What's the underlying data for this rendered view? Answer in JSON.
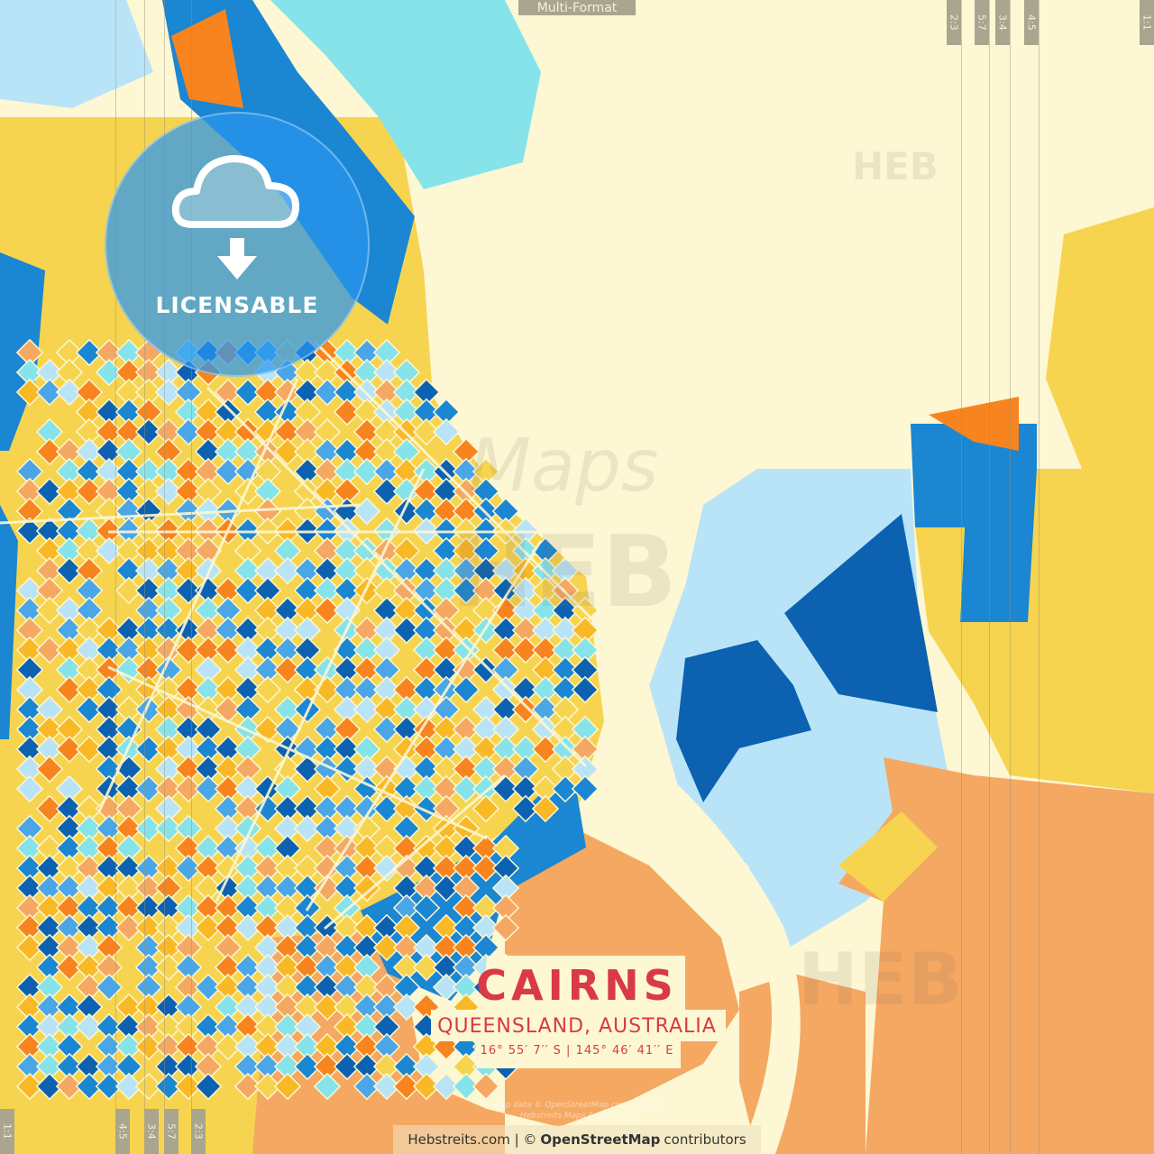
{
  "header": {
    "format_label": "Multi-Format"
  },
  "ratio_markers": {
    "top": [
      "2:3",
      "5:7",
      "3:4",
      "4:5",
      "1:1"
    ],
    "bottom": [
      "1:1",
      "4:5",
      "3:4",
      "5:7",
      "2:3"
    ]
  },
  "badge": {
    "icon": "cloud-download-icon",
    "label": "LICENSABLE"
  },
  "title": {
    "city": "CAIRNS",
    "region": "QUEENSLAND, AUSTRALIA",
    "coordinates": "16°  55′  7′′ S  |  145°  46′  41′′ E"
  },
  "watermarks": {
    "heb": "HEB",
    "maps": "Maps"
  },
  "footer": {
    "site": "Hebstreits.com | ©",
    "osm": "OpenStreetMap",
    "contributors": "contributors"
  },
  "faint_credit": [
    "Map data © OpenStreetMap contributors",
    "Hebstreits Maps & Sketches"
  ],
  "colors": {
    "land_cream": "#fdf7d3",
    "water_light": "#b9e4f7",
    "blue": "#1b86d1",
    "navy": "#0c62b0",
    "cyan": "#86e3ea",
    "yellow": "#f6d44f",
    "orange": "#f7841e",
    "peach": "#f5a862",
    "title_red": "#d93a45"
  }
}
